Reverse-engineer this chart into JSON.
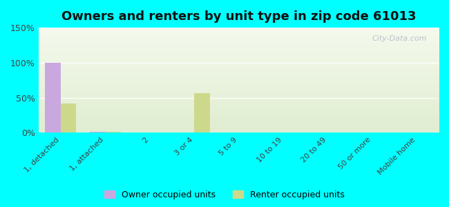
{
  "title": "Owners and renters by unit type in zip code 61013",
  "categories": [
    "1, detached",
    "1, attached",
    "2",
    "3 or 4",
    "5 to 9",
    "10 to 19",
    "20 to 49",
    "50 or more",
    "Mobile home"
  ],
  "owner_values": [
    100,
    1,
    0,
    0,
    0,
    0,
    0,
    0,
    0
  ],
  "renter_values": [
    42,
    1,
    0,
    57,
    0,
    0,
    0,
    0,
    0
  ],
  "owner_color": "#c9a8e0",
  "renter_color": "#cdd98a",
  "ylim": [
    0,
    150
  ],
  "yticks": [
    0,
    50,
    100,
    150
  ],
  "ytick_labels": [
    "0%",
    "50%",
    "100%",
    "150%"
  ],
  "background_color": "#00ffff",
  "owner_label": "Owner occupied units",
  "renter_label": "Renter occupied units",
  "title_fontsize": 13,
  "bar_width": 0.35,
  "watermark": "City-Data.com"
}
